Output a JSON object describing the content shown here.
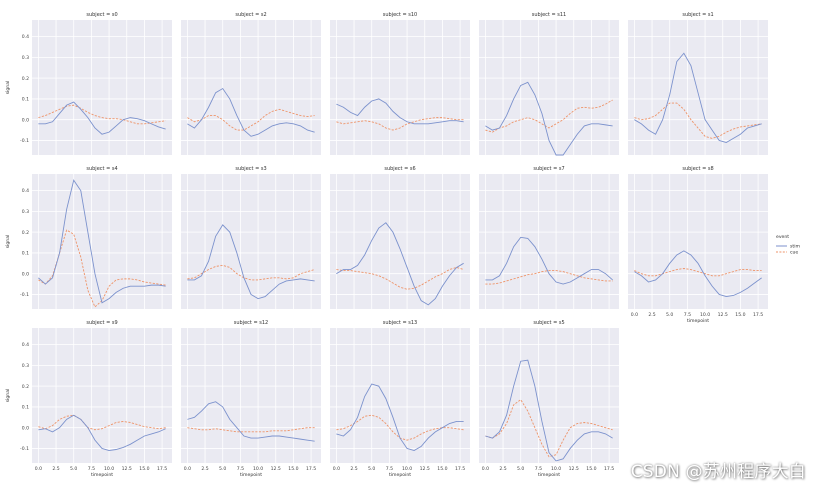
{
  "chart_data": {
    "type": "line",
    "layout": "facet-grid 3 rows x 5 columns",
    "shared_y": true,
    "x": [
      0,
      1,
      2,
      3,
      4,
      5,
      6,
      7,
      8,
      9,
      10,
      11,
      12,
      13,
      14,
      15,
      16,
      17,
      18
    ],
    "xlabel": "timepoint",
    "ylabel": "signal",
    "xlim": [
      -0.9,
      18.9
    ],
    "ylim": [
      -0.17,
      0.48
    ],
    "xticks": [
      "0.0",
      "2.5",
      "5.0",
      "7.5",
      "10.0",
      "12.5",
      "15.0",
      "17.5"
    ],
    "xtick_values": [
      0,
      2.5,
      5,
      7.5,
      10,
      12.5,
      15,
      17.5
    ],
    "yticks": [
      "-0.1",
      "0.0",
      "0.1",
      "0.2",
      "0.3",
      "0.4"
    ],
    "ytick_values": [
      -0.1,
      0,
      0.1,
      0.2,
      0.3,
      0.4
    ],
    "grid": true,
    "legend": {
      "title": "event",
      "placement": "right",
      "entries": [
        {
          "label": "stim",
          "color": "#7c92cd",
          "dash": "solid"
        },
        {
          "label": "cue",
          "color": "#ee9368",
          "dash": "dashed"
        }
      ]
    },
    "facets": [
      {
        "title": "subject = s0",
        "stim": [
          -0.02,
          -0.02,
          -0.01,
          0.03,
          0.07,
          0.085,
          0.05,
          0.01,
          -0.04,
          -0.07,
          -0.06,
          -0.03,
          0.0,
          0.01,
          0.005,
          -0.005,
          -0.02,
          -0.035,
          -0.045
        ],
        "cue": [
          0.01,
          0.02,
          0.035,
          0.05,
          0.065,
          0.07,
          0.055,
          0.035,
          0.02,
          0.01,
          0.005,
          0.005,
          0.0,
          -0.01,
          -0.02,
          -0.02,
          -0.015,
          -0.01,
          -0.005
        ]
      },
      {
        "title": "subject = s2",
        "stim": [
          -0.02,
          -0.04,
          0.0,
          0.06,
          0.13,
          0.15,
          0.1,
          0.02,
          -0.05,
          -0.08,
          -0.07,
          -0.05,
          -0.03,
          -0.02,
          -0.015,
          -0.02,
          -0.03,
          -0.05,
          -0.06
        ],
        "cue": [
          0.01,
          -0.01,
          0.0,
          0.02,
          0.02,
          0.0,
          -0.03,
          -0.05,
          -0.05,
          -0.03,
          -0.01,
          0.02,
          0.04,
          0.05,
          0.04,
          0.03,
          0.02,
          0.015,
          0.02
        ]
      },
      {
        "title": "subject = s10",
        "stim": [
          0.075,
          0.06,
          0.035,
          0.02,
          0.06,
          0.09,
          0.1,
          0.08,
          0.04,
          0.01,
          -0.01,
          -0.02,
          -0.02,
          -0.02,
          -0.015,
          -0.01,
          -0.005,
          -0.005,
          -0.01
        ],
        "cue": [
          -0.01,
          -0.02,
          -0.015,
          -0.01,
          -0.005,
          -0.01,
          -0.02,
          -0.04,
          -0.05,
          -0.04,
          -0.02,
          -0.01,
          0.0,
          0.005,
          0.01,
          0.01,
          0.005,
          0.0,
          0.0
        ]
      },
      {
        "title": "subject = s11",
        "stim": [
          -0.03,
          -0.05,
          -0.04,
          0.02,
          0.1,
          0.165,
          0.18,
          0.12,
          0.03,
          -0.1,
          -0.17,
          -0.17,
          -0.12,
          -0.07,
          -0.03,
          -0.02,
          -0.02,
          -0.025,
          -0.03
        ],
        "cue": [
          -0.05,
          -0.06,
          -0.04,
          -0.03,
          -0.01,
          0.0,
          0.01,
          0.0,
          -0.02,
          -0.04,
          -0.02,
          0.0,
          0.03,
          0.055,
          0.06,
          0.055,
          0.06,
          0.075,
          0.095
        ]
      },
      {
        "title": "subject = s1",
        "stim": [
          0.0,
          -0.02,
          -0.05,
          -0.07,
          0.0,
          0.12,
          0.28,
          0.32,
          0.26,
          0.13,
          0.0,
          -0.05,
          -0.1,
          -0.11,
          -0.09,
          -0.07,
          -0.04,
          -0.03,
          -0.02
        ],
        "cue": [
          0.01,
          0.0,
          0.005,
          0.02,
          0.05,
          0.08,
          0.08,
          0.05,
          0.0,
          -0.04,
          -0.08,
          -0.09,
          -0.08,
          -0.06,
          -0.045,
          -0.035,
          -0.03,
          -0.025,
          -0.02
        ]
      },
      {
        "title": "subject = s4",
        "stim": [
          -0.02,
          -0.05,
          -0.02,
          0.1,
          0.31,
          0.45,
          0.4,
          0.2,
          0.0,
          -0.14,
          -0.12,
          -0.09,
          -0.07,
          -0.06,
          -0.06,
          -0.06,
          -0.055,
          -0.055,
          -0.06
        ],
        "cue": [
          -0.03,
          -0.05,
          -0.01,
          0.1,
          0.21,
          0.19,
          0.08,
          -0.08,
          -0.16,
          -0.13,
          -0.06,
          -0.03,
          -0.025,
          -0.025,
          -0.03,
          -0.04,
          -0.045,
          -0.05,
          -0.055
        ]
      },
      {
        "title": "subject = s3",
        "stim": [
          -0.03,
          -0.03,
          -0.01,
          0.06,
          0.18,
          0.235,
          0.2,
          0.1,
          -0.02,
          -0.1,
          -0.12,
          -0.11,
          -0.08,
          -0.05,
          -0.035,
          -0.03,
          -0.025,
          -0.03,
          -0.035
        ],
        "cue": [
          -0.025,
          -0.02,
          0.0,
          0.02,
          0.035,
          0.04,
          0.03,
          0.0,
          -0.02,
          -0.03,
          -0.03,
          -0.025,
          -0.02,
          -0.02,
          -0.025,
          -0.02,
          0.0,
          0.01,
          0.02
        ]
      },
      {
        "title": "subject = s6",
        "stim": [
          0.0,
          0.02,
          0.02,
          0.04,
          0.09,
          0.16,
          0.22,
          0.245,
          0.2,
          0.12,
          0.03,
          -0.06,
          -0.13,
          -0.15,
          -0.12,
          -0.06,
          -0.01,
          0.03,
          0.05
        ],
        "cue": [
          0.02,
          0.015,
          0.015,
          0.01,
          0.005,
          0.0,
          -0.01,
          -0.025,
          -0.045,
          -0.065,
          -0.075,
          -0.07,
          -0.055,
          -0.035,
          -0.015,
          0.0,
          0.02,
          0.03,
          0.02
        ]
      },
      {
        "title": "subject = s7",
        "stim": [
          -0.03,
          -0.03,
          -0.01,
          0.05,
          0.13,
          0.175,
          0.17,
          0.13,
          0.07,
          0.0,
          -0.04,
          -0.05,
          -0.04,
          -0.02,
          0.0,
          0.02,
          0.02,
          0.0,
          -0.03
        ],
        "cue": [
          -0.05,
          -0.05,
          -0.045,
          -0.035,
          -0.025,
          -0.015,
          -0.005,
          0.0,
          0.01,
          0.015,
          0.015,
          0.01,
          0.0,
          -0.01,
          -0.02,
          -0.025,
          -0.03,
          -0.035,
          -0.035
        ]
      },
      {
        "title": "subject = s8",
        "stim": [
          0.01,
          -0.01,
          -0.04,
          -0.03,
          0.0,
          0.05,
          0.09,
          0.11,
          0.09,
          0.05,
          -0.01,
          -0.06,
          -0.1,
          -0.11,
          -0.105,
          -0.09,
          -0.07,
          -0.045,
          -0.02
        ],
        "cue": [
          0.015,
          0.0,
          -0.01,
          -0.01,
          0.0,
          0.01,
          0.02,
          0.025,
          0.02,
          0.01,
          0.0,
          -0.01,
          -0.01,
          0.0,
          0.01,
          0.02,
          0.02,
          0.015,
          0.015
        ]
      },
      {
        "title": "subject = s9",
        "stim": [
          -0.01,
          -0.005,
          -0.02,
          0.0,
          0.04,
          0.06,
          0.04,
          0.0,
          -0.06,
          -0.1,
          -0.11,
          -0.105,
          -0.095,
          -0.08,
          -0.06,
          -0.04,
          -0.03,
          -0.02,
          -0.005
        ],
        "cue": [
          0.005,
          -0.005,
          0.01,
          0.04,
          0.055,
          0.06,
          0.04,
          0.0,
          -0.01,
          -0.005,
          0.01,
          0.025,
          0.03,
          0.025,
          0.015,
          0.005,
          0.0,
          -0.005,
          0.0
        ]
      },
      {
        "title": "subject = s12",
        "stim": [
          0.04,
          0.05,
          0.08,
          0.115,
          0.125,
          0.1,
          0.04,
          0.0,
          -0.04,
          -0.05,
          -0.05,
          -0.045,
          -0.04,
          -0.04,
          -0.045,
          -0.05,
          -0.055,
          -0.06,
          -0.065
        ],
        "cue": [
          0.0,
          -0.005,
          -0.01,
          -0.01,
          -0.005,
          -0.01,
          -0.015,
          -0.02,
          -0.02,
          -0.02,
          -0.02,
          -0.02,
          -0.015,
          -0.015,
          -0.015,
          -0.01,
          -0.005,
          0.0,
          0.0
        ]
      },
      {
        "title": "subject = s13",
        "stim": [
          -0.03,
          -0.04,
          -0.01,
          0.05,
          0.15,
          0.21,
          0.2,
          0.14,
          0.05,
          -0.05,
          -0.1,
          -0.11,
          -0.09,
          -0.05,
          -0.02,
          0.0,
          0.02,
          0.03,
          0.03
        ],
        "cue": [
          -0.01,
          -0.005,
          0.01,
          0.03,
          0.055,
          0.06,
          0.05,
          0.02,
          -0.02,
          -0.05,
          -0.06,
          -0.05,
          -0.03,
          -0.015,
          -0.005,
          0.0,
          0.0,
          -0.005,
          -0.01
        ]
      },
      {
        "title": "subject = s5",
        "stim": [
          -0.04,
          -0.05,
          -0.02,
          0.06,
          0.2,
          0.32,
          0.325,
          0.2,
          0.03,
          -0.12,
          -0.16,
          -0.15,
          -0.1,
          -0.06,
          -0.03,
          -0.02,
          -0.02,
          -0.03,
          -0.05
        ],
        "cue": [
          -0.04,
          -0.05,
          -0.03,
          0.02,
          0.11,
          0.135,
          0.08,
          0.0,
          -0.08,
          -0.14,
          -0.13,
          -0.06,
          0.0,
          0.02,
          0.025,
          0.02,
          0.01,
          0.0,
          -0.01
        ]
      }
    ]
  }
}
